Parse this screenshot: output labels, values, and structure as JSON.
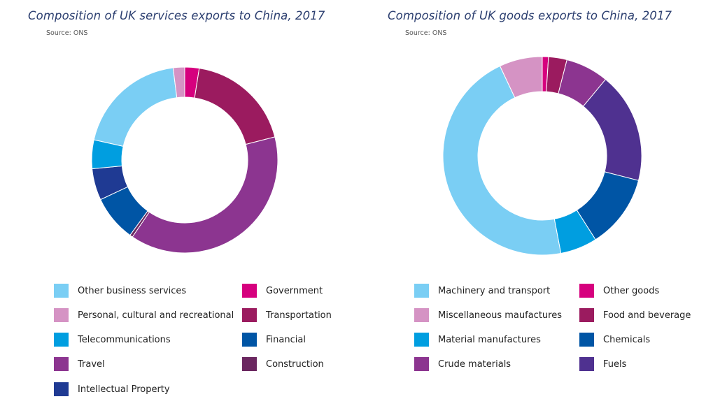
{
  "chart_data": [
    {
      "type": "pie",
      "style": "donut",
      "title": "Composition of UK services exports to China, 2017",
      "source": "Source: ONS",
      "legend_position": "bottom",
      "slices": [
        {
          "name": "Government",
          "value": 2.5,
          "color": "#d6007e"
        },
        {
          "name": "Transportation",
          "value": 18.5,
          "color": "#9b1b5f"
        },
        {
          "name": "Travel",
          "value": 38.5,
          "color": "#8c3590"
        },
        {
          "name": "Construction",
          "value": 0.5,
          "color": "#6b2760"
        },
        {
          "name": "Financial",
          "value": 8,
          "color": "#0055a5"
        },
        {
          "name": "Intellectual Property",
          "value": 5.5,
          "color": "#1f3a93"
        },
        {
          "name": "Telecommunications",
          "value": 5,
          "color": "#009ee0"
        },
        {
          "name": "Other business services",
          "value": 19.5,
          "color": "#7acef4"
        },
        {
          "name": "Personal, cultural and recreational",
          "value": 2,
          "color": "#d593c4"
        }
      ],
      "legend": [
        {
          "name": "Other business services",
          "color": "#7acef4"
        },
        {
          "name": "Personal, cultural and recreational",
          "color": "#d593c4"
        },
        {
          "name": "Telecommunications",
          "color": "#009ee0"
        },
        {
          "name": "Travel",
          "color": "#8c3590"
        },
        {
          "name": "Intellectual Property",
          "color": "#1f3a93"
        },
        {
          "name": "Government",
          "color": "#d6007e"
        },
        {
          "name": "Transportation",
          "color": "#9b1b5f"
        },
        {
          "name": "Financial",
          "color": "#0055a5"
        },
        {
          "name": "Construction",
          "color": "#6b2760"
        }
      ]
    },
    {
      "type": "pie",
      "style": "donut",
      "title": "Composition of UK goods exports to China, 2017",
      "source": "Source: ONS",
      "legend_position": "bottom",
      "slices": [
        {
          "name": "Other goods",
          "value": 1,
          "color": "#d6007e"
        },
        {
          "name": "Food and beverage",
          "value": 3,
          "color": "#9b1b5f"
        },
        {
          "name": "Crude materials",
          "value": 7,
          "color": "#8c3590"
        },
        {
          "name": "Fuels",
          "value": 18,
          "color": "#4f3190"
        },
        {
          "name": "Chemicals",
          "value": 12,
          "color": "#0055a5"
        },
        {
          "name": "Material manufactures",
          "value": 6,
          "color": "#009ee0"
        },
        {
          "name": "Machinery and transport",
          "value": 46,
          "color": "#7acef4"
        },
        {
          "name": "Miscellaneous maufactures",
          "value": 7,
          "color": "#d593c4"
        }
      ],
      "legend": [
        {
          "name": "Machinery and transport",
          "color": "#7acef4"
        },
        {
          "name": "Miscellaneous maufactures",
          "color": "#d593c4"
        },
        {
          "name": "Material manufactures",
          "color": "#009ee0"
        },
        {
          "name": "Crude materials",
          "color": "#8c3590"
        },
        {
          "name": "Other goods",
          "color": "#d6007e"
        },
        {
          "name": "Food and beverage",
          "color": "#9b1b5f"
        },
        {
          "name": "Chemicals",
          "color": "#0055a5"
        },
        {
          "name": "Fuels",
          "color": "#4f3190"
        }
      ]
    }
  ]
}
